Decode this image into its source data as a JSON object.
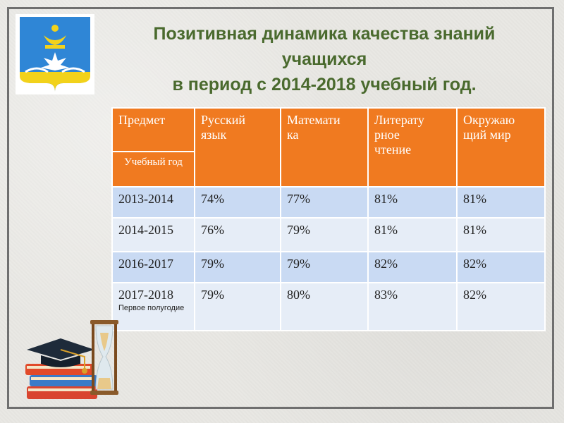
{
  "title": {
    "line1": "Позитивная динамика качества знаний",
    "line2": "учащихся",
    "line3": "в период с 2014-2018 учебный год."
  },
  "table": {
    "header": {
      "subject": "Предмет",
      "year": "Учебный год",
      "columns": [
        "Русский язык",
        "Математика",
        "Литературное чтение",
        "Окружающий мир"
      ],
      "columns_wrapped": [
        [
          "Русский",
          "язык"
        ],
        [
          "Математи",
          "ка"
        ],
        [
          "Литерату",
          "рное",
          "чтение"
        ],
        [
          "Окружаю",
          "щий  мир"
        ]
      ]
    },
    "rows": [
      {
        "year": "2013-2014",
        "note": "",
        "values": [
          "74%",
          "77%",
          "81%",
          "81%"
        ]
      },
      {
        "year": "2014-2015",
        "note": "",
        "values": [
          "76%",
          "79%",
          "81%",
          "81%"
        ]
      },
      {
        "year": "2016-2017",
        "note": "",
        "values": [
          "79%",
          "79%",
          "82%",
          "82%"
        ]
      },
      {
        "year": "2017-2018",
        "note": "Первое полугодие",
        "values": [
          "79%",
          "80%",
          "83%",
          "82%"
        ]
      }
    ]
  },
  "colors": {
    "header_bg": "#f07a20",
    "row_dark": "#c9daf3",
    "row_light": "#e6edf7",
    "title": "#4a6a2e"
  },
  "icons": [
    "coat-of-arms-icon",
    "books-icon",
    "graduation-cap-icon",
    "hourglass-icon"
  ]
}
